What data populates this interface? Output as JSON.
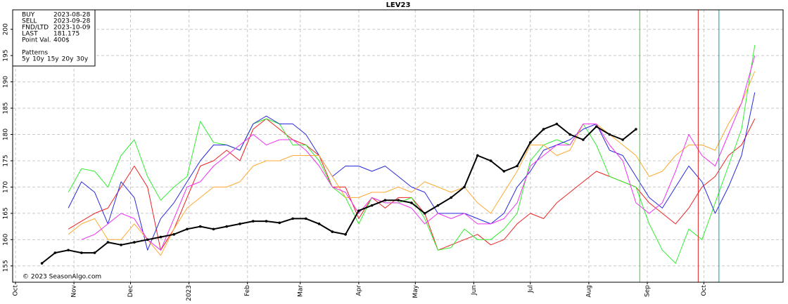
{
  "chart_data": {
    "type": "line",
    "title": "LEV23",
    "footer": "© 2023 SeasonAlgo.com",
    "info": {
      "markers": [
        {
          "label": "BUY",
          "date": "2023-08-28",
          "x": 331,
          "color": "#22dd22"
        },
        {
          "label": "SELL",
          "date": "2023-09-28",
          "x": 362,
          "color": "#dd2222"
        },
        {
          "label": "FND/LTD",
          "date": "2023-10-09",
          "x": 373,
          "color": "#119999"
        }
      ],
      "last_label": "LAST",
      "last": 181.175,
      "point_label": "Point Val.",
      "point_value": "400$",
      "patterns_label": "Patterns"
    },
    "xlim": [
      -1.5,
      407
    ],
    "xticks": [
      {
        "value": 0,
        "label": "Oct"
      },
      {
        "value": 31,
        "label": "Nov"
      },
      {
        "value": 61,
        "label": "Dec"
      },
      {
        "value": 92,
        "label": "2023"
      },
      {
        "value": 123,
        "label": "Feb"
      },
      {
        "value": 151,
        "label": "Mar"
      },
      {
        "value": 182,
        "label": "Apr"
      },
      {
        "value": 212,
        "label": "May"
      },
      {
        "value": 243,
        "label": "Jun"
      },
      {
        "value": 273,
        "label": "Jul"
      },
      {
        "value": 304,
        "label": "Aug"
      },
      {
        "value": 335,
        "label": "Sep"
      },
      {
        "value": 365,
        "label": "Oct"
      }
    ],
    "ylim": [
      151.9,
      203.7
    ],
    "yticks": [
      155,
      160,
      165,
      170,
      175,
      180,
      185,
      190,
      195,
      200
    ],
    "grid": true,
    "x": [
      14,
      21,
      28,
      35,
      42,
      49,
      56,
      63,
      70,
      77,
      84,
      91,
      98,
      105,
      112,
      119,
      126,
      133,
      140,
      147,
      154,
      161,
      168,
      175,
      182,
      189,
      196,
      203,
      210,
      217,
      224,
      231,
      238,
      245,
      252,
      259,
      266,
      273,
      280,
      287,
      294,
      301,
      308,
      315,
      322,
      329,
      336,
      343,
      350,
      357,
      364,
      371,
      378,
      385,
      392
    ],
    "price": {
      "color": "#000000",
      "values": [
        155.5,
        157.5,
        158,
        157.5,
        157.5,
        159.5,
        159,
        159.5,
        160,
        160.5,
        161,
        162,
        162.5,
        162,
        162.5,
        163,
        163.5,
        163.5,
        163.2,
        164,
        164,
        163,
        161.5,
        161,
        165.5,
        166.5,
        167.5,
        167.5,
        167,
        165,
        166.5,
        168,
        170,
        176,
        175,
        173,
        174,
        178.5,
        181,
        182,
        180,
        179,
        181.5,
        180,
        179,
        181,
        null,
        null,
        null,
        null,
        null,
        null,
        null,
        null,
        null
      ]
    },
    "series": [
      {
        "name": "5y",
        "color": "#ee2222",
        "values": [
          null,
          null,
          162,
          163.5,
          165,
          166,
          170,
          174,
          170,
          158,
          162,
          168,
          174,
          175,
          177,
          175,
          181,
          183,
          181,
          179,
          178,
          176,
          170,
          170,
          164,
          168,
          166,
          168,
          168,
          165,
          158,
          159,
          160,
          161,
          159,
          160,
          163,
          165,
          164,
          167,
          169,
          171,
          173,
          172,
          171,
          170,
          167,
          165,
          163,
          166,
          170,
          172,
          176,
          178,
          183
        ]
      },
      {
        "name": "10y",
        "color": "#33ee33",
        "values": [
          null,
          null,
          169,
          173.5,
          173,
          170,
          176,
          179,
          172,
          167.5,
          170,
          172,
          182.5,
          178.5,
          178,
          177,
          182,
          183,
          182,
          178,
          178,
          175,
          170,
          168,
          163,
          168,
          167,
          167,
          168,
          164,
          158,
          158.5,
          162,
          160,
          160,
          162,
          165,
          175,
          178,
          179,
          178,
          182,
          178,
          172,
          171,
          170,
          163,
          158,
          155.5,
          162,
          160,
          167,
          174,
          181,
          197
        ]
      },
      {
        "name": "15y",
        "color": "#2a2add",
        "values": [
          null,
          null,
          166,
          171,
          169,
          163,
          171,
          168,
          158,
          164,
          167,
          171,
          175,
          178,
          178,
          177,
          182,
          183.5,
          182,
          182,
          180,
          176,
          172,
          174,
          174,
          173,
          174,
          172,
          170,
          169,
          165,
          165,
          165,
          164,
          163,
          165,
          170,
          173,
          177,
          178,
          179,
          181,
          182,
          177,
          176,
          172,
          168,
          166,
          170,
          174,
          171,
          165,
          170,
          176,
          188
        ]
      },
      {
        "name": "20y",
        "color": "#ffaa33",
        "values": [
          null,
          null,
          161,
          163,
          164,
          160,
          160,
          163,
          160,
          157,
          162,
          166,
          168,
          170,
          170,
          171,
          174,
          175,
          175,
          176,
          176,
          176,
          172,
          168,
          168,
          169,
          169,
          170,
          169,
          171,
          170,
          169,
          170,
          167,
          165,
          169,
          173,
          178,
          178,
          176,
          177,
          182,
          182,
          180,
          178,
          176,
          172,
          173,
          176,
          178,
          178,
          177,
          182,
          186,
          192
        ]
      },
      {
        "name": "30y",
        "color": "#ee33ee",
        "values": [
          null,
          null,
          null,
          160,
          161,
          163,
          165,
          164,
          160,
          158,
          164,
          170,
          171,
          174,
          176,
          178,
          180,
          178,
          179,
          179,
          177,
          174,
          170,
          169,
          165,
          168,
          167,
          167,
          166,
          163,
          165,
          164,
          165,
          163,
          163,
          164,
          167,
          174,
          176,
          178,
          178,
          182,
          182,
          178,
          175,
          167,
          165,
          167,
          173,
          180,
          176,
          174,
          180,
          186,
          195
        ]
      }
    ]
  }
}
